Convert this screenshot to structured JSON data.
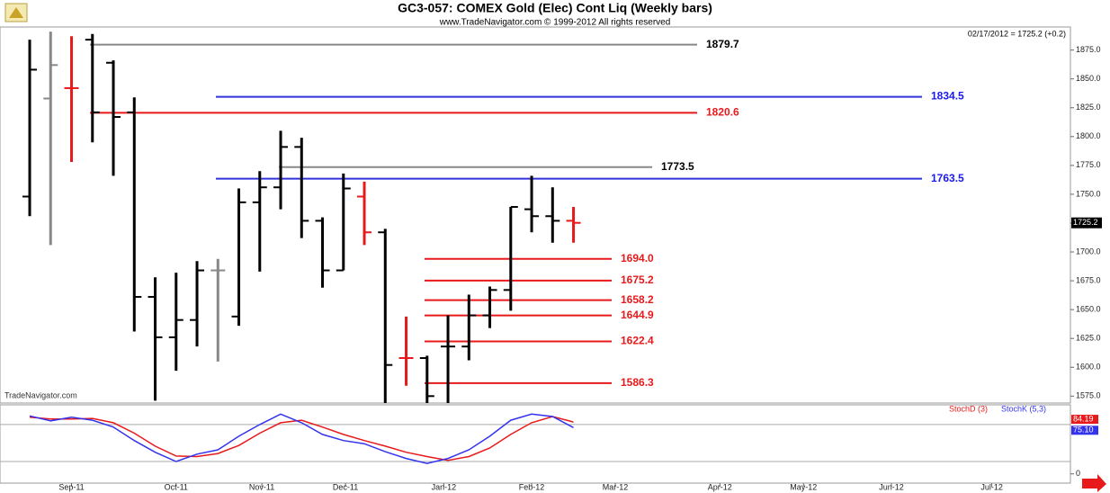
{
  "chart_data": [
    {
      "type": "ohlc",
      "title": "GC3-057:  COMEX Gold (Elec) Cont Liq  (Weekly bars)",
      "subtitle": "www.TradeNavigator.com © 1999-2012 All rights reserved",
      "quote": "02/17/2012 = 1725.2 (+0.2)",
      "watermark": "TradeNavigator.com",
      "open": [
        1748,
        1833,
        1842,
        1884,
        1864,
        1821,
        1661,
        1626,
        1641,
        1684,
        1644,
        1743,
        1756,
        1791,
        1727,
        1684,
        1748,
        1717,
        1608,
        1608,
        1618,
        1618,
        1645,
        1667,
        1737,
        1731,
        1727
      ],
      "high": [
        1884,
        1891,
        1887,
        1889,
        1866,
        1834,
        1678,
        1682,
        1692,
        1694,
        1755,
        1770,
        1805,
        1799,
        1730,
        1768,
        1761,
        1720,
        1644,
        1610,
        1645,
        1663,
        1670,
        1739,
        1766,
        1756,
        1739
      ],
      "low": [
        1731,
        1706,
        1778,
        1795,
        1766,
        1631,
        1571,
        1597,
        1618,
        1605,
        1636,
        1683,
        1737,
        1712,
        1669,
        1684,
        1706,
        1569,
        1584,
        1569,
        1569,
        1606,
        1634,
        1649,
        1717,
        1708,
        1708
      ],
      "close": [
        1858,
        1862,
        1842,
        1821,
        1817,
        1661,
        1626,
        1641,
        1684,
        1684,
        1743,
        1756,
        1791,
        1727,
        1684,
        1755,
        1717,
        1602,
        1608,
        1575,
        1618,
        1645,
        1667,
        1739,
        1731,
        1727,
        1725.2
      ],
      "bar_colors": [
        "#000000",
        "#888888",
        "#e8191b",
        "#000000",
        "#000000",
        "#000000",
        "#000000",
        "#000000",
        "#000000",
        "#888888",
        "#000000",
        "#000000",
        "#000000",
        "#000000",
        "#000000",
        "#000000",
        "#e8191b",
        "#000000",
        "#e8191b",
        "#000000",
        "#000000",
        "#000000",
        "#000000",
        "#000000",
        "#000000",
        "#000000",
        "#e8191b"
      ],
      "last_price": 1725.2,
      "levels": [
        {
          "value": 1879.7,
          "label": "1879.7",
          "color": "#888888",
          "label_color": "#000000"
        },
        {
          "value": 1834.5,
          "label": "1834.5",
          "color": "#3333dd",
          "label_color": "#1a1aee"
        },
        {
          "value": 1820.6,
          "label": "1820.6",
          "color": "#e8191b",
          "label_color": "#e8191b"
        },
        {
          "value": 1773.5,
          "label": "1773.5",
          "color": "#888888",
          "label_color": "#000000"
        },
        {
          "value": 1763.5,
          "label": "1763.5",
          "color": "#3333dd",
          "label_color": "#1a1aee"
        },
        {
          "value": 1694.0,
          "label": "1694.0",
          "color": "#e8191b",
          "label_color": "#e8191b"
        },
        {
          "value": 1675.2,
          "label": "1675.2",
          "color": "#e8191b",
          "label_color": "#e8191b"
        },
        {
          "value": 1658.2,
          "label": "1658.2",
          "color": "#e8191b",
          "label_color": "#e8191b"
        },
        {
          "value": 1644.9,
          "label": "1644.9",
          "color": "#e8191b",
          "label_color": "#e8191b"
        },
        {
          "value": 1622.4,
          "label": "1622.4",
          "color": "#e8191b",
          "label_color": "#e8191b"
        },
        {
          "value": 1586.3,
          "label": "1586.3",
          "color": "#e8191b",
          "label_color": "#e8191b"
        }
      ],
      "xlim": [
        -1.42,
        49.76
      ],
      "ylim": [
        1569,
        1895
      ],
      "yticks": [
        {
          "value": 1575,
          "label": "1575.0"
        },
        {
          "value": 1600,
          "label": "1600.0"
        },
        {
          "value": 1625,
          "label": "1625.0"
        },
        {
          "value": 1650,
          "label": "1650.0"
        },
        {
          "value": 1675,
          "label": "1675.0"
        },
        {
          "value": 1700,
          "label": "1700.0"
        },
        {
          "value": 1725,
          "label": "1725.0"
        },
        {
          "value": 1750,
          "label": "1750.0"
        },
        {
          "value": 1775,
          "label": "1775.0"
        },
        {
          "value": 1800,
          "label": "1800.0"
        },
        {
          "value": 1825,
          "label": "1825.0"
        },
        {
          "value": 1850,
          "label": "1850.0"
        },
        {
          "value": 1875,
          "label": "1875.0"
        }
      ]
    },
    {
      "type": "line",
      "series": [
        {
          "name": "StochD (3)",
          "color": "#e8191b",
          "last_label": "84.19",
          "values": [
            92,
            89,
            89,
            90,
            83,
            66,
            45,
            29,
            28,
            33,
            46,
            66,
            83,
            87,
            76,
            64,
            54,
            45,
            35,
            28,
            22,
            28,
            42,
            64,
            83,
            93,
            84.19
          ]
        },
        {
          "name": "StochK (5,3)",
          "color": "#3333ee",
          "last_label": "75.10",
          "values": [
            94,
            86,
            92,
            87,
            76,
            54,
            35,
            20,
            32,
            39,
            61,
            80,
            97,
            83,
            64,
            54,
            49,
            36,
            25,
            17,
            25,
            39,
            61,
            87,
            97,
            93,
            75.1
          ]
        }
      ],
      "levels": [
        20,
        80
      ],
      "xlim": [
        -1.42,
        49.76
      ],
      "ylim": [
        -15,
        112
      ],
      "yticks": [
        0
      ],
      "xticks": [
        {
          "value": 2,
          "label": "Sep-11"
        },
        {
          "value": 7,
          "label": "Oct-11"
        },
        {
          "value": 11.1,
          "label": "Nov-11"
        },
        {
          "value": 15.1,
          "label": "Dec-11"
        },
        {
          "value": 19.8,
          "label": "Jan-12"
        },
        {
          "value": 24,
          "label": "Feb-12"
        },
        {
          "value": 28,
          "label": "Mar-12"
        },
        {
          "value": 33,
          "label": "Apr-12"
        },
        {
          "value": 37,
          "label": "May-12"
        },
        {
          "value": 41.2,
          "label": "Jun-12"
        },
        {
          "value": 46,
          "label": "Jul-12"
        }
      ]
    }
  ]
}
